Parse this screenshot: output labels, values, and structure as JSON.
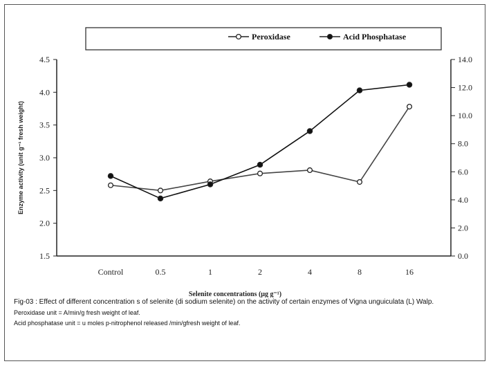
{
  "chart_data": {
    "type": "line",
    "categories": [
      "Control",
      "0.5",
      "1",
      "2",
      "4",
      "8",
      "16"
    ],
    "xlabel": "Selenite concentrations (µg g⁻¹)",
    "ylabel": "Enzyme activity (unit g⁻¹ fresh weight)",
    "ylim": [
      1.5,
      4.5
    ],
    "y_ticks": [
      "1.5",
      "2.0",
      "2.5",
      "3.0",
      "3.5",
      "4.0",
      "4.5"
    ],
    "y2lim": [
      0,
      14
    ],
    "y2_ticks": [
      "0.0",
      "2.0",
      "4.0",
      "6.0",
      "8.0",
      "10.0",
      "12.0",
      "14.0"
    ],
    "legend_position": "top",
    "series": [
      {
        "name": "Peroxidase",
        "axis": "left",
        "marker": "open-circle",
        "values": [
          2.58,
          2.5,
          2.64,
          2.76,
          2.81,
          2.63,
          3.78
        ]
      },
      {
        "name": "Acid Phosphatase",
        "axis": "right",
        "marker": "filled-circle",
        "values": [
          5.7,
          4.1,
          5.1,
          6.5,
          8.9,
          11.8,
          12.2
        ]
      }
    ],
    "grid": false
  },
  "caption": {
    "figure_text": "Fig-03 : Effect of different concentration s of selenite (di sodium selenite) on the activity of certain enzymes of Vigna unguiculata (L) Walp.",
    "note_peroxidase": "Peroxidase unit = A/min/g fresh weight of leaf.",
    "note_phosphatase": "Acid phosphatase unit = u moles p-nitrophenol released /min/gfresh weight of leaf."
  }
}
